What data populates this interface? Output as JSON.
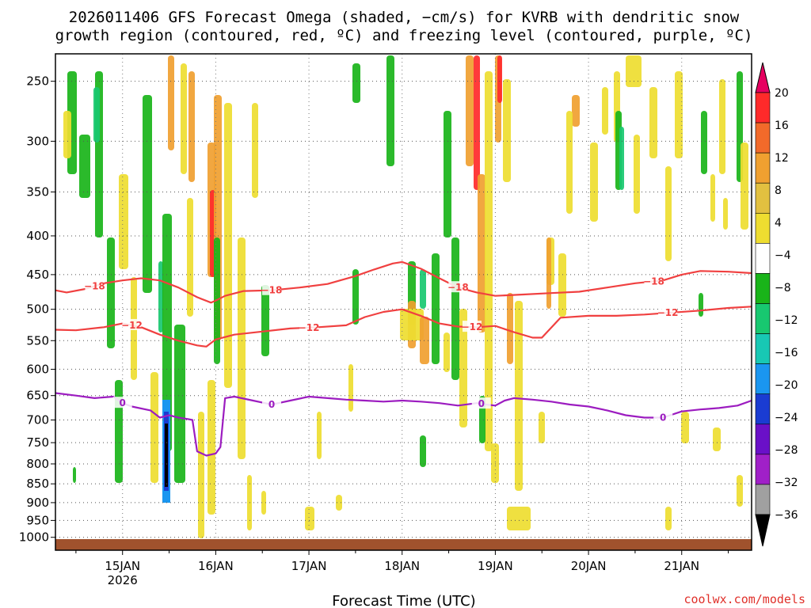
{
  "chart_data": {
    "type": "heatmap",
    "title": "2026011406 GFS Forecast Omega (shaded, −cm/s) for KVRB with dendritic snow",
    "subtitle": "growth region (contoured, red, ºC) and freezing level (contoured, purple, ºC)",
    "xlabel": "Forecast Time (UTC)",
    "credit": "coolwx.com/models",
    "x_unit": "days since 14JAN 00Z",
    "xlim": [
      0.28,
      7.75
    ],
    "ylim": [
      230,
      1040
    ],
    "y_scale": "log-pressure (hPa)",
    "y_ticks": [
      {
        "value": 250,
        "label": "250"
      },
      {
        "value": 300,
        "label": "300"
      },
      {
        "value": 350,
        "label": "350"
      },
      {
        "value": 400,
        "label": "400"
      },
      {
        "value": 450,
        "label": "450"
      },
      {
        "value": 500,
        "label": "500"
      },
      {
        "value": 550,
        "label": "550"
      },
      {
        "value": 600,
        "label": "600"
      },
      {
        "value": 650,
        "label": "650"
      },
      {
        "value": 700,
        "label": "700"
      },
      {
        "value": 750,
        "label": "750"
      },
      {
        "value": 800,
        "label": "800"
      },
      {
        "value": 850,
        "label": "850"
      },
      {
        "value": 900,
        "label": "900"
      },
      {
        "value": 950,
        "label": "950"
      },
      {
        "value": 1000,
        "label": "1000"
      }
    ],
    "x_ticks": [
      {
        "value": 1,
        "label": "15JAN",
        "sublabel": "2026"
      },
      {
        "value": 2,
        "label": "16JAN"
      },
      {
        "value": 3,
        "label": "17JAN"
      },
      {
        "value": 4,
        "label": "18JAN"
      },
      {
        "value": 5,
        "label": "19JAN"
      },
      {
        "value": 6,
        "label": "20JAN"
      },
      {
        "value": 7,
        "label": "21JAN"
      }
    ],
    "colorbar": {
      "labels": [
        "20",
        "16",
        "12",
        "8",
        "4",
        "−4",
        "−8",
        "−12",
        "−16",
        "−20",
        "−24",
        "−28",
        "−32",
        "−36"
      ],
      "colors": [
        "#e60060",
        "#ff2a2a",
        "#f26a2a",
        "#f0a030",
        "#e2c040",
        "#eedd30",
        "#ffffff",
        "#19b419",
        "#18c870",
        "#18c8b4",
        "#1a96f0",
        "#1a3cd2",
        "#6a10c8",
        "#a020c8",
        "#a0a0a0",
        "#000000"
      ]
    },
    "series": [
      {
        "name": "-18 C isotherm (dendritic growth region top)",
        "color": "#f04040",
        "label": "−18",
        "label_x": [
          0.7,
          2.6,
          4.6,
          6.7
        ],
        "x": [
          0.28,
          0.4,
          0.6,
          0.8,
          1.0,
          1.2,
          1.4,
          1.6,
          1.8,
          1.95,
          2.0,
          2.1,
          2.3,
          2.6,
          2.9,
          3.2,
          3.5,
          3.7,
          3.9,
          4.0,
          4.2,
          4.4,
          4.6,
          4.8,
          5.0,
          5.3,
          5.6,
          5.9,
          6.2,
          6.5,
          6.8,
          7.0,
          7.2,
          7.5,
          7.75
        ],
        "values": [
          472,
          475,
          470,
          462,
          458,
          455,
          458,
          468,
          482,
          490,
          487,
          480,
          473,
          472,
          468,
          463,
          452,
          443,
          435,
          433,
          442,
          455,
          468,
          475,
          480,
          478,
          476,
          474,
          468,
          462,
          458,
          450,
          445,
          446,
          448
        ]
      },
      {
        "name": "-12 C isotherm (dendritic growth region bottom)",
        "color": "#f04040",
        "label": "−12",
        "label_x": [
          1.1,
          3.0,
          4.75,
          6.85
        ],
        "x": [
          0.28,
          0.5,
          0.8,
          1.0,
          1.2,
          1.4,
          1.6,
          1.8,
          1.9,
          2.0,
          2.2,
          2.5,
          2.8,
          3.1,
          3.4,
          3.6,
          3.8,
          4.0,
          4.2,
          4.4,
          4.6,
          4.8,
          5.0,
          5.2,
          5.4,
          5.5,
          5.7,
          6.0,
          6.3,
          6.6,
          6.9,
          7.2,
          7.5,
          7.75
        ],
        "values": [
          532,
          533,
          528,
          522,
          528,
          540,
          550,
          558,
          560,
          548,
          540,
          535,
          530,
          528,
          525,
          512,
          504,
          500,
          510,
          522,
          527,
          528,
          526,
          536,
          545,
          545,
          513,
          510,
          510,
          508,
          505,
          502,
          498,
          496
        ]
      },
      {
        "name": "0 C freezing level",
        "color": "#9c1cc0",
        "label": "0",
        "label_x": [
          1.0,
          2.6,
          4.85,
          6.8
        ],
        "x": [
          0.28,
          0.5,
          0.7,
          0.9,
          1.0,
          1.1,
          1.3,
          1.4,
          1.5,
          1.6,
          1.7,
          1.75,
          1.8,
          1.9,
          2.0,
          2.05,
          2.1,
          2.2,
          2.4,
          2.6,
          2.8,
          3.0,
          3.2,
          3.4,
          3.6,
          3.8,
          4.0,
          4.2,
          4.4,
          4.6,
          4.8,
          4.9,
          5.0,
          5.1,
          5.2,
          5.4,
          5.6,
          5.8,
          6.0,
          6.2,
          6.4,
          6.6,
          6.8,
          7.0,
          7.2,
          7.4,
          7.6,
          7.75
        ],
        "values": [
          645,
          650,
          655,
          652,
          665,
          672,
          680,
          695,
          690,
          695,
          698,
          700,
          770,
          780,
          775,
          760,
          655,
          652,
          660,
          668,
          660,
          652,
          655,
          658,
          660,
          662,
          660,
          662,
          665,
          670,
          665,
          668,
          670,
          660,
          655,
          658,
          662,
          668,
          672,
          680,
          690,
          695,
          695,
          682,
          678,
          675,
          670,
          660
        ]
      }
    ]
  }
}
